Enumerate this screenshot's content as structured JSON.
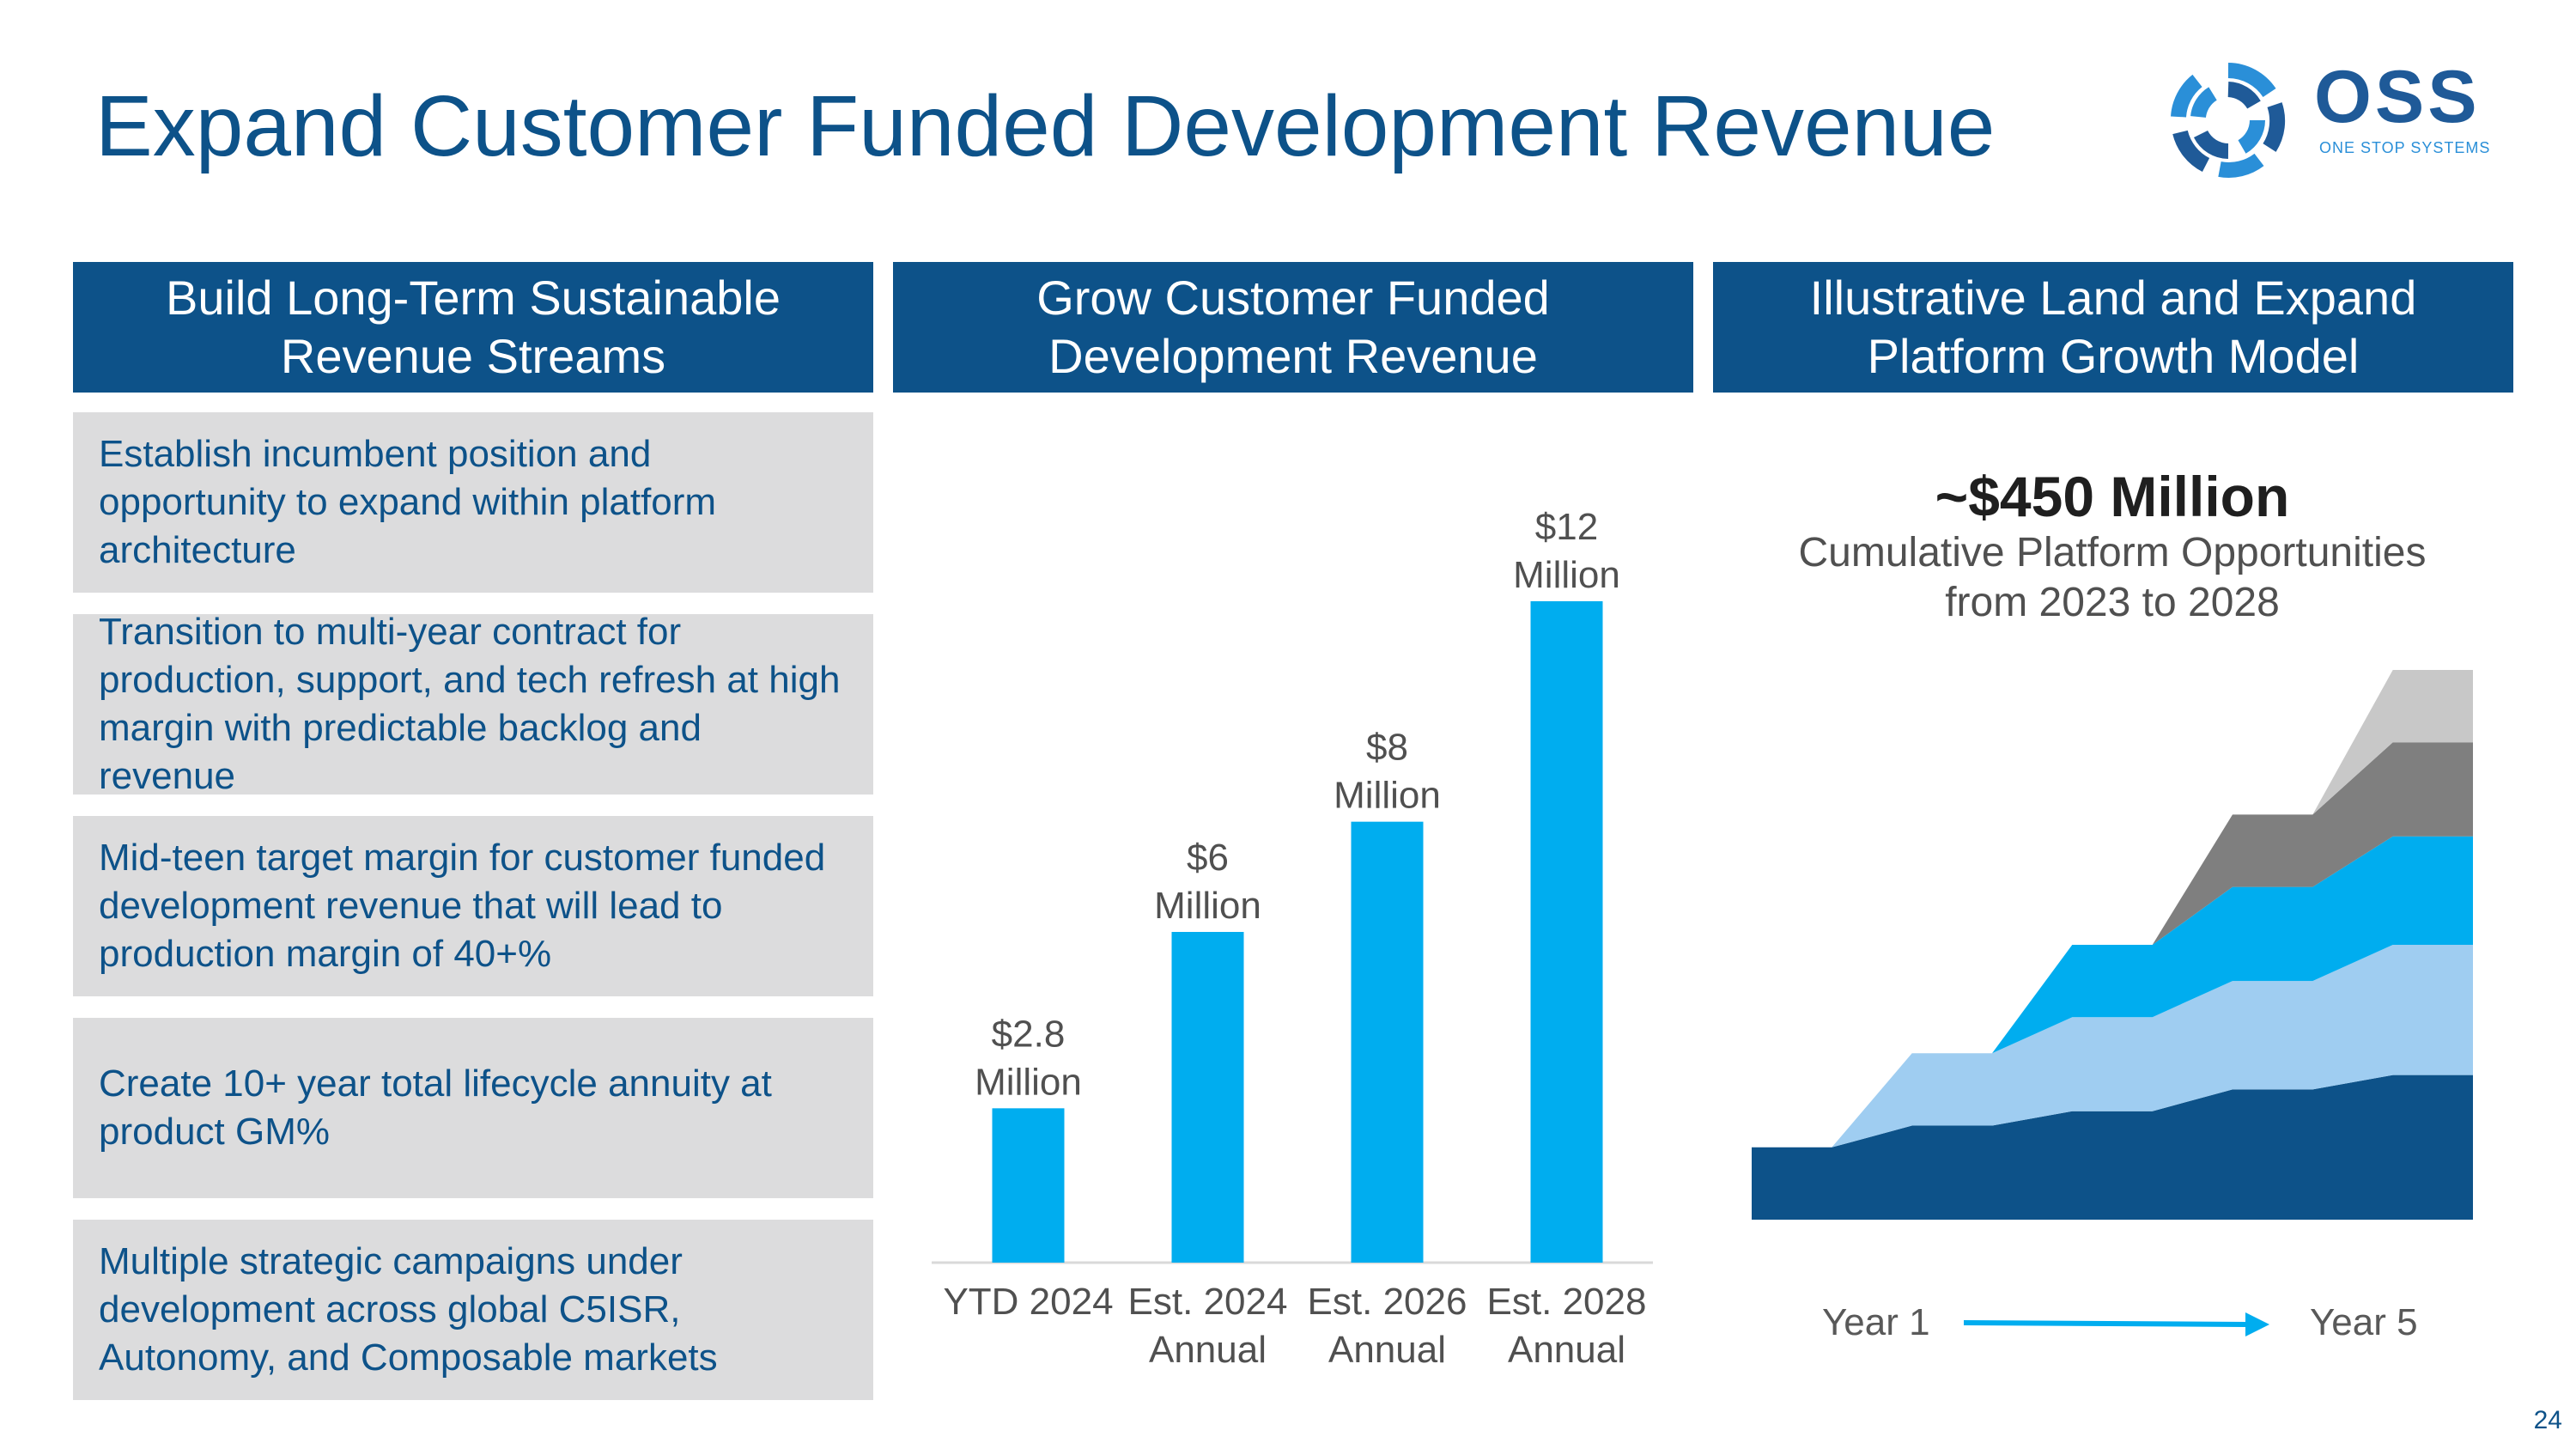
{
  "title": "Expand Customer Funded Development Revenue",
  "logo": {
    "word": "OSS",
    "tagline": "ONE STOP SYSTEMS"
  },
  "columns": [
    {
      "line1": "Build Long-Term Sustainable",
      "line2": "Revenue Streams"
    },
    {
      "line1": "Grow Customer Funded",
      "line2": "Development Revenue"
    },
    {
      "line1": "Illustrative Land and Expand",
      "line2": "Platform Growth Model"
    }
  ],
  "points": [
    "Establish incumbent position and opportunity to expand within platform architecture",
    "Transition to multi-year contract for production, support, and tech refresh at high margin with predictable backlog and revenue",
    "Mid-teen target margin for customer funded development revenue that will lead to production margin of 40+%",
    "Create 10+ year total lifecycle annuity at product GM%",
    "Multiple strategic campaigns under development across global C5ISR, Autonomy, and Composable markets"
  ],
  "growth": {
    "headline": "~$450 Million",
    "subtitle_line1": "Cumulative Platform Opportunities",
    "subtitle_line2": "from 2023 to 2028",
    "start_label": "Year 1",
    "end_label": "Year 5"
  },
  "page_number": "24",
  "colors": {
    "navy": "#0d5289",
    "bar": "#00adef",
    "grey_box": "#dcdcdd",
    "layer_light_blue": "#9fcdf1",
    "layer_dark_grey": "#7f7f7f",
    "layer_light_grey": "#c8c8c8"
  },
  "chart_data": [
    {
      "type": "bar",
      "title": "Grow Customer Funded Development Revenue",
      "unit": "$ Million",
      "categories": [
        {
          "line1": "YTD 2024",
          "line2": ""
        },
        {
          "line1": "Est. 2024",
          "line2": "Annual"
        },
        {
          "line1": "Est. 2026",
          "line2": "Annual"
        },
        {
          "line1": "Est. 2028",
          "line2": "Annual"
        }
      ],
      "values": [
        2.8,
        6,
        8,
        12
      ],
      "data_labels": [
        {
          "line1": "$2.8",
          "line2": "Million"
        },
        {
          "line1": "$6",
          "line2": "Million"
        },
        {
          "line1": "$8",
          "line2": "Million"
        },
        {
          "line1": "$12",
          "line2": "Million"
        }
      ],
      "ylim": [
        0,
        12
      ]
    },
    {
      "type": "area",
      "title": "Illustrative Land and Expand Platform Growth Model",
      "note": "Illustrative stacked layers; values are relative units read from the shape",
      "x": [
        0,
        1,
        2,
        3,
        4,
        5,
        6,
        7,
        8,
        9
      ],
      "series": [
        {
          "name": "layer1",
          "color": "#0d5289",
          "values": [
            1.0,
            1.0,
            1.3,
            1.3,
            1.5,
            1.5,
            1.8,
            1.8,
            2.0,
            2.0
          ]
        },
        {
          "name": "layer2",
          "color": "#9fcdf1",
          "values": [
            0,
            0,
            1.0,
            1.0,
            1.3,
            1.3,
            1.5,
            1.5,
            1.8,
            1.8
          ]
        },
        {
          "name": "layer3",
          "color": "#00adef",
          "values": [
            0,
            0,
            0,
            0,
            1.0,
            1.0,
            1.3,
            1.3,
            1.5,
            1.5
          ]
        },
        {
          "name": "layer4",
          "color": "#7f7f7f",
          "values": [
            0,
            0,
            0,
            0,
            0,
            0,
            1.0,
            1.0,
            1.3,
            1.3
          ]
        },
        {
          "name": "layer5",
          "color": "#c8c8c8",
          "values": [
            0,
            0,
            0,
            0,
            0,
            0,
            0,
            0,
            1.0,
            1.0
          ]
        }
      ],
      "ylim": [
        0,
        7.6
      ]
    }
  ]
}
